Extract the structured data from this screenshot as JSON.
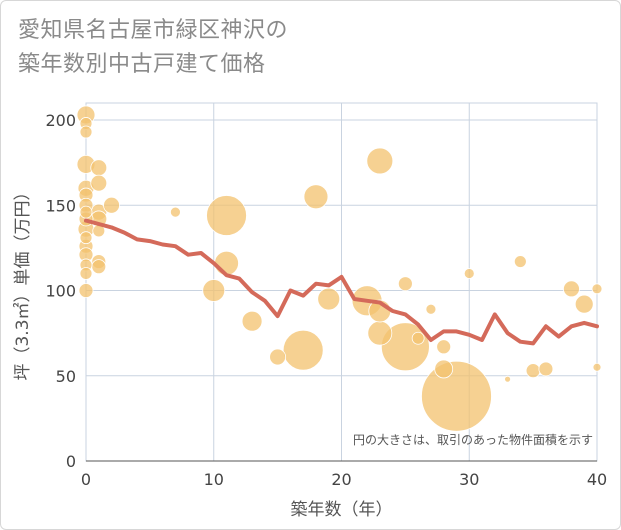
{
  "title_line1": "愛知県名古屋市緑区神沢の",
  "title_line2": "築年数別中古戸建て価格",
  "chart_data": {
    "type": "scatter",
    "xlabel": "築年数（年）",
    "ylabel": "坪（3.3㎡）単価（万円）",
    "xlim": [
      0,
      40
    ],
    "ylim": [
      0,
      210
    ],
    "xticks": [
      0,
      10,
      20,
      30,
      40
    ],
    "yticks": [
      0,
      50,
      100,
      150,
      200
    ],
    "grid": true,
    "annotation": "円の大きさは、取引のあった物件面積を示す",
    "colors": {
      "bubble": "#f3c26e",
      "line": "#d46a5a",
      "grid": "#c9d3e0"
    },
    "bubbles": [
      {
        "x": 0,
        "y": 203,
        "s": 9
      },
      {
        "x": 0,
        "y": 198,
        "s": 6
      },
      {
        "x": 0,
        "y": 193,
        "s": 6
      },
      {
        "x": 0,
        "y": 174,
        "s": 9
      },
      {
        "x": 0,
        "y": 160,
        "s": 8
      },
      {
        "x": 0,
        "y": 156,
        "s": 7
      },
      {
        "x": 0,
        "y": 150,
        "s": 7
      },
      {
        "x": 0,
        "y": 146,
        "s": 6
      },
      {
        "x": 0,
        "y": 142,
        "s": 7
      },
      {
        "x": 0,
        "y": 136,
        "s": 8
      },
      {
        "x": 0,
        "y": 131,
        "s": 6
      },
      {
        "x": 0,
        "y": 126,
        "s": 7
      },
      {
        "x": 0,
        "y": 121,
        "s": 7
      },
      {
        "x": 0,
        "y": 115,
        "s": 6
      },
      {
        "x": 0,
        "y": 110,
        "s": 6
      },
      {
        "x": 0,
        "y": 100,
        "s": 7
      },
      {
        "x": 1,
        "y": 172,
        "s": 8
      },
      {
        "x": 1,
        "y": 163,
        "s": 8
      },
      {
        "x": 1,
        "y": 146,
        "s": 8
      },
      {
        "x": 1,
        "y": 142,
        "s": 8
      },
      {
        "x": 1,
        "y": 135,
        "s": 6
      },
      {
        "x": 1,
        "y": 117,
        "s": 7
      },
      {
        "x": 1,
        "y": 114,
        "s": 7
      },
      {
        "x": 2,
        "y": 150,
        "s": 8
      },
      {
        "x": 7,
        "y": 146,
        "s": 5
      },
      {
        "x": 10,
        "y": 100,
        "s": 11
      },
      {
        "x": 11,
        "y": 144,
        "s": 20
      },
      {
        "x": 11,
        "y": 116,
        "s": 12
      },
      {
        "x": 13,
        "y": 82,
        "s": 10
      },
      {
        "x": 15,
        "y": 61,
        "s": 8
      },
      {
        "x": 17,
        "y": 65,
        "s": 20
      },
      {
        "x": 18,
        "y": 155,
        "s": 12
      },
      {
        "x": 19,
        "y": 95,
        "s": 11
      },
      {
        "x": 22,
        "y": 94,
        "s": 15
      },
      {
        "x": 23,
        "y": 176,
        "s": 13
      },
      {
        "x": 23,
        "y": 88,
        "s": 11
      },
      {
        "x": 23,
        "y": 75,
        "s": 12
      },
      {
        "x": 25,
        "y": 67,
        "s": 24
      },
      {
        "x": 25,
        "y": 104,
        "s": 7
      },
      {
        "x": 26,
        "y": 72,
        "s": 6
      },
      {
        "x": 27,
        "y": 89,
        "s": 5
      },
      {
        "x": 28,
        "y": 67,
        "s": 7
      },
      {
        "x": 28,
        "y": 54,
        "s": 9
      },
      {
        "x": 29,
        "y": 38,
        "s": 35
      },
      {
        "x": 30,
        "y": 110,
        "s": 5
      },
      {
        "x": 33,
        "y": 48,
        "s": 3
      },
      {
        "x": 34,
        "y": 117,
        "s": 6
      },
      {
        "x": 35,
        "y": 53,
        "s": 7
      },
      {
        "x": 36,
        "y": 54,
        "s": 7
      },
      {
        "x": 38,
        "y": 101,
        "s": 8
      },
      {
        "x": 39,
        "y": 92,
        "s": 9
      },
      {
        "x": 40,
        "y": 101,
        "s": 5
      },
      {
        "x": 40,
        "y": 55,
        "s": 4
      }
    ],
    "line": [
      {
        "x": 0,
        "y": 141
      },
      {
        "x": 1,
        "y": 139
      },
      {
        "x": 2,
        "y": 137
      },
      {
        "x": 3,
        "y": 134
      },
      {
        "x": 4,
        "y": 130
      },
      {
        "x": 5,
        "y": 129
      },
      {
        "x": 6,
        "y": 127
      },
      {
        "x": 7,
        "y": 126
      },
      {
        "x": 8,
        "y": 121
      },
      {
        "x": 9,
        "y": 122
      },
      {
        "x": 10,
        "y": 116
      },
      {
        "x": 11,
        "y": 109
      },
      {
        "x": 12,
        "y": 107
      },
      {
        "x": 13,
        "y": 99
      },
      {
        "x": 14,
        "y": 94
      },
      {
        "x": 15,
        "y": 85
      },
      {
        "x": 16,
        "y": 100
      },
      {
        "x": 17,
        "y": 97
      },
      {
        "x": 18,
        "y": 104
      },
      {
        "x": 19,
        "y": 103
      },
      {
        "x": 20,
        "y": 108
      },
      {
        "x": 21,
        "y": 95
      },
      {
        "x": 22,
        "y": 94
      },
      {
        "x": 23,
        "y": 93
      },
      {
        "x": 24,
        "y": 88
      },
      {
        "x": 25,
        "y": 86
      },
      {
        "x": 26,
        "y": 80
      },
      {
        "x": 27,
        "y": 71
      },
      {
        "x": 28,
        "y": 76
      },
      {
        "x": 29,
        "y": 76
      },
      {
        "x": 30,
        "y": 74
      },
      {
        "x": 31,
        "y": 71
      },
      {
        "x": 32,
        "y": 86
      },
      {
        "x": 33,
        "y": 75
      },
      {
        "x": 34,
        "y": 70
      },
      {
        "x": 35,
        "y": 69
      },
      {
        "x": 36,
        "y": 79
      },
      {
        "x": 37,
        "y": 73
      },
      {
        "x": 38,
        "y": 79
      },
      {
        "x": 39,
        "y": 81
      },
      {
        "x": 40,
        "y": 79
      }
    ]
  }
}
